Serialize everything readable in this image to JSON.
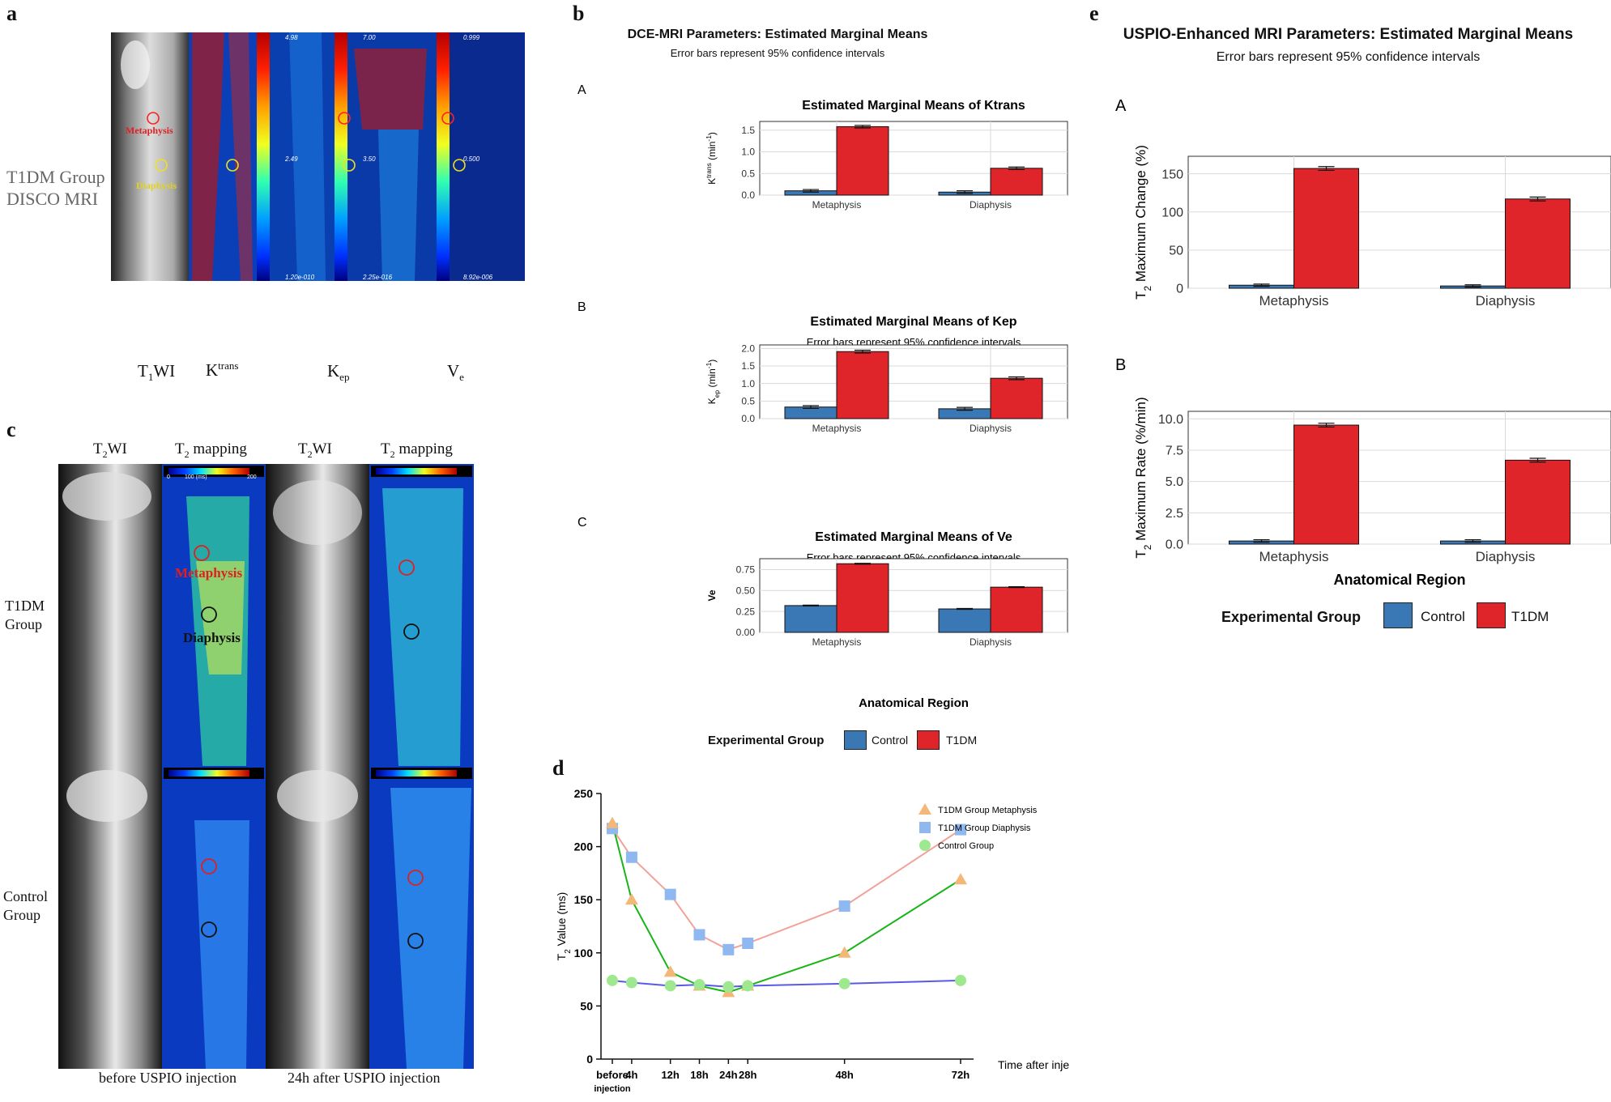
{
  "colors": {
    "control": "#3a77b5",
    "t1dm": "#e0252a",
    "line_pink": "#f3a29a",
    "line_green": "#18b418",
    "line_blue": "#5a59e6",
    "tri": "#f3b778",
    "sq": "#8fb7f0",
    "circ": "#9ee88f"
  },
  "panel_a": {
    "label": "a",
    "group_label": "T1DM Group\nDISCO MRI",
    "cap_t1": "T",
    "cap_t1_sub": "1",
    "cap_t1_tail": "WI",
    "cap_ktrans": "K",
    "cap_ktrans_sup": "trans",
    "cap_kep": "K",
    "cap_kep_sub": "ep",
    "cap_ve": "V",
    "cap_ve_sub": "e",
    "roi_meta": "Metaphysis",
    "roi_dia": "Diaphysis",
    "scale_ktrans": {
      "top": "4.98",
      "mid": "2.49",
      "bot": "1.20e-010"
    },
    "scale_kep": {
      "top": "7.00",
      "mid": "3.50",
      "bot": "2.25e-016"
    },
    "scale_ve": {
      "top": "0.999",
      "mid": "0.500",
      "bot": "8.92e-006"
    }
  },
  "panel_c": {
    "label": "c",
    "col1_h": "T",
    "col1_sub": "2",
    "col1_tail": "WI",
    "col2_h": "T",
    "col2_sub": "2",
    "col2_tail": " mapping",
    "row1": "T1DM\nGroup",
    "row2": "Control\nGroup",
    "foot_left": "before USPIO injection",
    "foot_right": "24h after USPIO injection",
    "roi_meta": "Metaphysis",
    "roi_dia": "Diaphysis",
    "cbar_mid": "100 (ms)",
    "cbar_max": "200",
    "cbar_min": "0"
  },
  "panel_b": {
    "label": "b",
    "title": "DCE-MRI Parameters: Estimated Marginal Means",
    "subtitle": "Error bars represent 95% confidence intervals",
    "xaxis_title": "Anatomical Region",
    "legend_title": "Experimental Group",
    "legend_control": "Control",
    "legend_t1dm": "T1DM"
  },
  "panel_e": {
    "label": "e",
    "title": "USPIO-Enhanced MRI Parameters: Estimated Marginal Means",
    "subtitle": "Error bars represent 95% confidence intervals",
    "xaxis_title": "Anatomical Region",
    "legend_title": "Experimental Group",
    "legend_control": "Control",
    "legend_t1dm": "T1DM"
  },
  "panel_d": {
    "label": "d"
  },
  "chart_data": [
    {
      "id": "b-A",
      "panel_letter": "A",
      "type": "bar",
      "title": "Estimated Marginal Means of Ktrans",
      "subtitle": "Error bars represent 95% confidence intervals",
      "categories": [
        "Metaphysis",
        "Diaphysis"
      ],
      "ylabel": "K",
      "ylabel_sup": "trans",
      "ylabel_tail": " (min",
      "ylabel_tail_sup": "-1",
      "ylabel_end": ")",
      "ylim": [
        0,
        1.7
      ],
      "yticks": [
        "0.0",
        "0.5",
        "1.0",
        "1.5"
      ],
      "series": [
        {
          "name": "Control",
          "values": [
            0.1,
            0.07
          ],
          "err": [
            0.03,
            0.03
          ]
        },
        {
          "name": "T1DM",
          "values": [
            1.58,
            0.62
          ],
          "err": [
            0.03,
            0.03
          ]
        }
      ]
    },
    {
      "id": "b-B",
      "panel_letter": "B",
      "type": "bar",
      "title": "Estimated Marginal Means of Kep",
      "subtitle": "Error bars represent 95% confidence intervals",
      "categories": [
        "Metaphysis",
        "Diaphysis"
      ],
      "ylabel": "K",
      "ylabel_sub": "ep",
      "ylabel_tail": " (min",
      "ylabel_tail_sup": "-1",
      "ylabel_end": ")",
      "ylim": [
        0,
        2.1
      ],
      "yticks": [
        "0.0",
        "0.5",
        "1.0",
        "1.5",
        "2.0"
      ],
      "series": [
        {
          "name": "Control",
          "values": [
            0.33,
            0.28
          ],
          "err": [
            0.04,
            0.04
          ]
        },
        {
          "name": "T1DM",
          "values": [
            1.91,
            1.15
          ],
          "err": [
            0.04,
            0.04
          ]
        }
      ]
    },
    {
      "id": "b-C",
      "panel_letter": "C",
      "type": "bar",
      "title": "Estimated Marginal Means of Ve",
      "subtitle": "Error bars represent 95% confidence intervals",
      "categories": [
        "Metaphysis",
        "Diaphysis"
      ],
      "ylabel": "Ve",
      "ylim": [
        0,
        0.88
      ],
      "yticks": [
        "0.00",
        "0.25",
        "0.50",
        "0.75"
      ],
      "series": [
        {
          "name": "Control",
          "values": [
            0.32,
            0.28
          ],
          "err": [
            0.005,
            0.005
          ]
        },
        {
          "name": "T1DM",
          "values": [
            0.82,
            0.54
          ],
          "err": [
            0.005,
            0.005
          ]
        }
      ]
    },
    {
      "id": "e-A",
      "panel_letter": "A",
      "type": "bar",
      "title": "",
      "categories": [
        "Metaphysis",
        "Diaphysis"
      ],
      "ylabel": "T",
      "ylabel_sub": "2",
      "ylabel_tail": " Maximum Change (%)",
      "ylim": [
        0,
        173
      ],
      "yticks": [
        "0",
        "50",
        "100",
        "150"
      ],
      "series": [
        {
          "name": "Control",
          "values": [
            4,
            3
          ],
          "err": [
            1.5,
            1.5
          ]
        },
        {
          "name": "T1DM",
          "values": [
            157,
            117
          ],
          "err": [
            2.5,
            2.5
          ]
        }
      ]
    },
    {
      "id": "e-B",
      "panel_letter": "B",
      "type": "bar",
      "title": "",
      "categories": [
        "Metaphysis",
        "Diaphysis"
      ],
      "ylabel": "T",
      "ylabel_sub": "2",
      "ylabel_tail": " Maximum Rate (%/min)",
      "ylim": [
        0,
        10.6
      ],
      "yticks": [
        "0.0",
        "2.5",
        "5.0",
        "7.5",
        "10.0"
      ],
      "series": [
        {
          "name": "Control",
          "values": [
            0.25,
            0.25
          ],
          "err": [
            0.1,
            0.1
          ]
        },
        {
          "name": "T1DM",
          "values": [
            9.5,
            6.7
          ],
          "err": [
            0.15,
            0.15
          ]
        }
      ]
    },
    {
      "id": "d",
      "type": "line",
      "ylabel": "T",
      "ylabel_sub": "2",
      "ylabel_tail": " Value  (ms)",
      "xlabel": "Time after injection",
      "ylim": [
        0,
        250
      ],
      "yticks": [
        "0",
        "50",
        "100",
        "150",
        "200",
        "250"
      ],
      "x": [
        "before\ninjection",
        "4h",
        "12h",
        "18h",
        "24h",
        "28h",
        "48h",
        "72h"
      ],
      "x_hours": [
        0,
        4,
        12,
        18,
        24,
        28,
        48,
        72
      ],
      "series": [
        {
          "name": "T1DM Group Metaphysis",
          "marker": "triangle",
          "values": [
            222,
            150,
            82,
            69,
            63,
            69,
            100,
            169
          ]
        },
        {
          "name": "T1DM Group Diaphysis",
          "marker": "square",
          "values": [
            217,
            190,
            155,
            117,
            103,
            109,
            144,
            216
          ]
        },
        {
          "name": "Control Group",
          "marker": "circle",
          "values": [
            74,
            72,
            69,
            70,
            68,
            69,
            71,
            74
          ]
        }
      ]
    }
  ]
}
